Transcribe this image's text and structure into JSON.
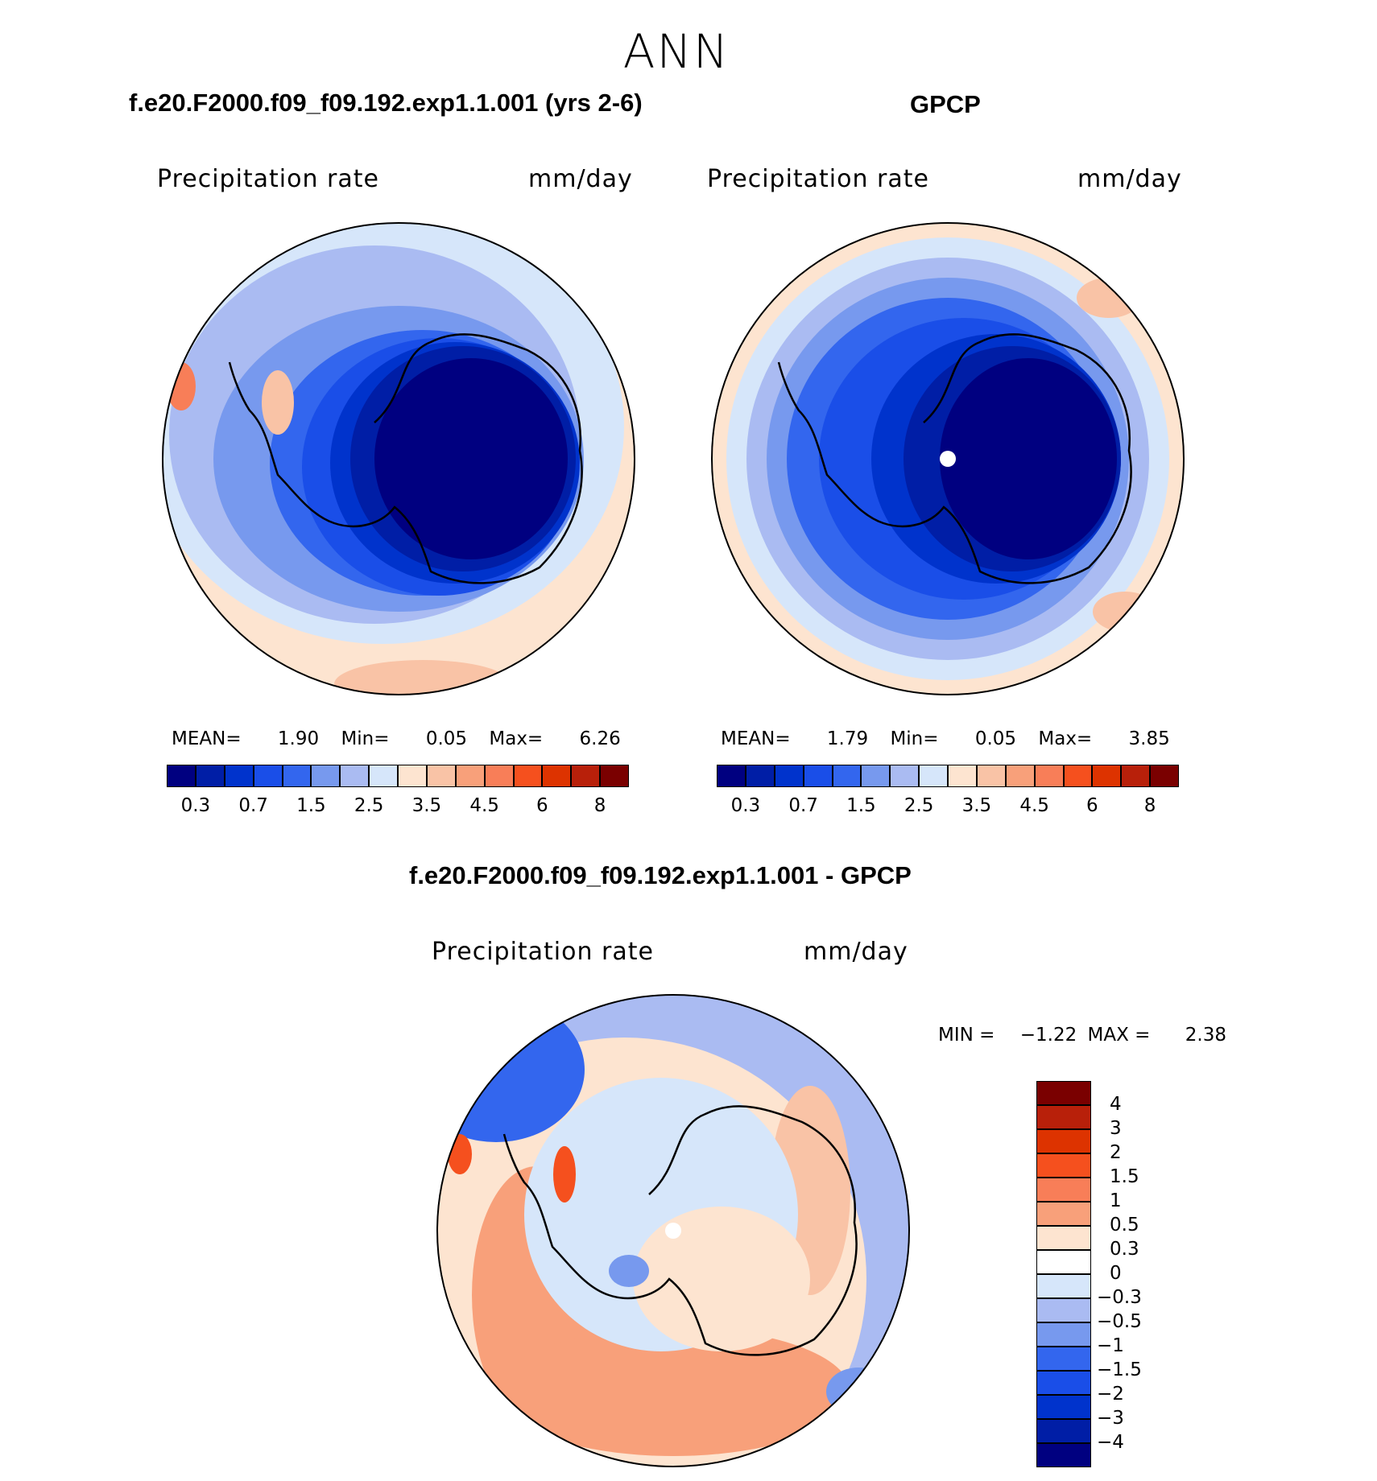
{
  "season": "ANN",
  "panel_left": {
    "title": "f.e20.F2000.f09_f09.192.exp1.1.001 (yrs 2-6)",
    "variable": "Precipitation rate",
    "units": "mm/day",
    "stats": {
      "mean_label": "MEAN=",
      "mean": "1.90",
      "min_label": "Min=",
      "min": "0.05",
      "max_label": "Max=",
      "max": "6.26"
    }
  },
  "panel_right": {
    "title": "GPCP",
    "variable": "Precipitation rate",
    "units": "mm/day",
    "stats": {
      "mean_label": "MEAN=",
      "mean": "1.79",
      "min_label": "Min=",
      "min": "0.05",
      "max_label": "Max=",
      "max": "3.85"
    }
  },
  "panel_diff": {
    "title": "f.e20.F2000.f09_f09.192.exp1.1.001 - GPCP",
    "variable": "Precipitation rate",
    "units": "mm/day",
    "min_label": "MIN =",
    "min": "−1.22",
    "max_label": "MAX =",
    "max": "2.38"
  },
  "colorbar_abs": {
    "colors": [
      "#000080",
      "#001ea6",
      "#0033cc",
      "#1a4ee8",
      "#3366ee",
      "#7799ee",
      "#aabbf2",
      "#d6e6fa",
      "#fde4d0",
      "#f9c3a6",
      "#f8a07a",
      "#f87e58",
      "#f5501e",
      "#dd3300",
      "#b8200a",
      "#7a0000"
    ],
    "tick_labels": [
      "0.3",
      "0.7",
      "1.5",
      "2.5",
      "3.5",
      "4.5",
      "6",
      "8"
    ]
  },
  "colorbar_diff": {
    "colors_top_to_bottom": [
      "#7a0000",
      "#b8200a",
      "#dd3300",
      "#f5501e",
      "#f87e58",
      "#f8a07a",
      "#fde4d0",
      "#ffffff",
      "#d6e6fa",
      "#aabbf2",
      "#7799ee",
      "#3366ee",
      "#1a4ee8",
      "#0033cc",
      "#001ea6",
      "#000080"
    ],
    "labels_top_to_bottom": [
      "4",
      "3",
      "2",
      "1.5",
      "1",
      "0.5",
      "0.3",
      "0",
      "−0.3",
      "−0.5",
      "−1",
      "−1.5",
      "−2",
      "−3",
      "−4"
    ]
  }
}
